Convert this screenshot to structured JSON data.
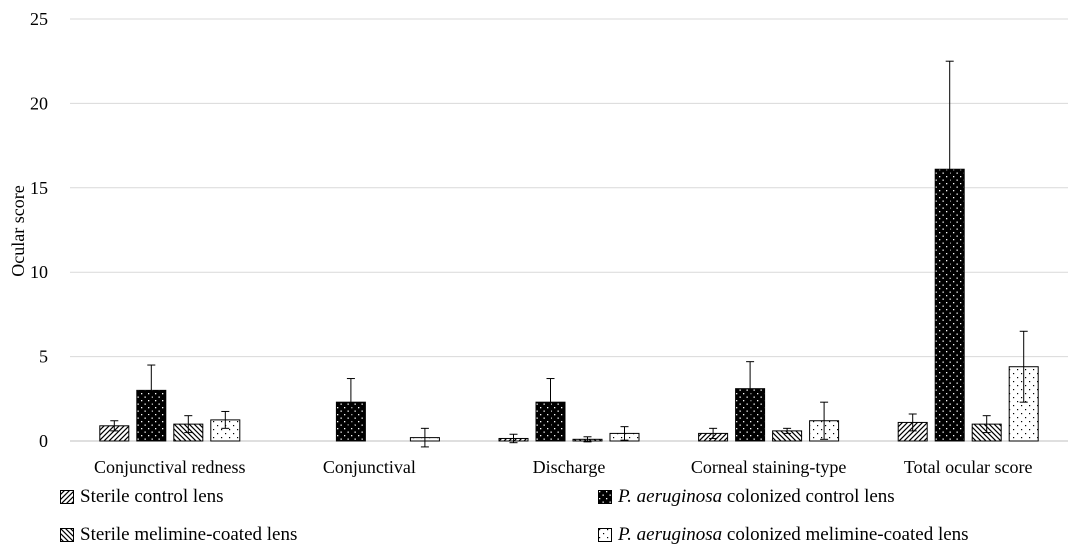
{
  "chart_data": {
    "type": "bar",
    "title": "",
    "ylabel": "Ocular score",
    "xlabel": "",
    "ylim": [
      0,
      25
    ],
    "yticks": [
      "0",
      "5",
      "10",
      "15",
      "20",
      "25"
    ],
    "grid": true,
    "legend_placement": "bottom",
    "categories": [
      "Conjunctival  redness",
      "Conjunctival",
      "Discharge",
      "Corneal staining-type",
      "Total ocular score"
    ],
    "series": [
      {
        "name": "Sterile control lens",
        "italic_prefix": "",
        "name_rest": "Sterile control lens",
        "pattern": "diag-forward",
        "values": [
          0.9,
          0,
          0.15,
          0.45,
          1.1
        ],
        "errors": [
          0.3,
          0,
          0.25,
          0.3,
          0.5
        ]
      },
      {
        "name": "P. aeruginosa colonized control lens",
        "italic_prefix": "P. aeruginosa",
        "name_rest": " colonized control lens",
        "pattern": "black-dots",
        "values": [
          3.0,
          2.3,
          2.3,
          3.1,
          16.1
        ],
        "errors": [
          1.5,
          1.4,
          1.4,
          1.6,
          6.4
        ]
      },
      {
        "name": "Sterile melimine-coated lens",
        "italic_prefix": "",
        "name_rest": "Sterile melimine-coated lens",
        "pattern": "diag-back",
        "values": [
          1.0,
          0,
          0.1,
          0.6,
          1.0
        ],
        "errors": [
          0.5,
          0,
          0.15,
          0.15,
          0.5
        ]
      },
      {
        "name": "P. aeruginosa colonized melimine-coated lens",
        "italic_prefix": "P. aeruginosa",
        "name_rest": " colonized melimine-coated lens",
        "pattern": "white-dots",
        "values": [
          1.25,
          0.2,
          0.45,
          1.2,
          4.4
        ],
        "errors": [
          0.5,
          0.55,
          0.4,
          1.1,
          2.1
        ]
      }
    ]
  }
}
